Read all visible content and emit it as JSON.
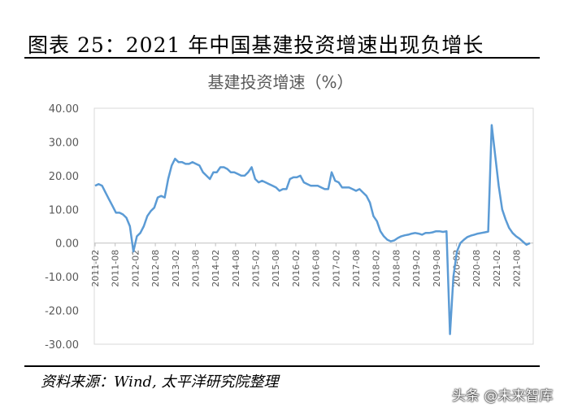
{
  "figure_title": "图表 25：2021 年中国基建投资增速出现负增长",
  "source": "资料来源：Wind, 太平洋研究院整理",
  "watermark": "头条 @未来智库",
  "colors": {
    "line": "#5b9bd5",
    "axis": "#bfbfbf",
    "text": "#595959"
  },
  "chart_data": {
    "type": "line",
    "title": "基建投资增速（%）",
    "y_tick_labels": [
      "40.00",
      "30.00",
      "20.00",
      "10.00",
      "0.00",
      "-10.00",
      "-20.00",
      "-30.00"
    ],
    "y_ticks": [
      40,
      30,
      20,
      10,
      0,
      -10,
      -20,
      -30
    ],
    "ylim": [
      -30,
      40
    ],
    "x_tick_labels": [
      "2011-02",
      "2011-08",
      "2012-02",
      "2012-08",
      "2013-02",
      "2013-08",
      "2014-02",
      "2014-08",
      "2015-02",
      "2015-08",
      "2016-02",
      "2016-08",
      "2017-02",
      "2017-08",
      "2018-02",
      "2018-08",
      "2019-02",
      "2019-08",
      "2020-02",
      "2020-08",
      "2021-02",
      "2021-08"
    ],
    "x_start": "2011-02",
    "x_end": "2021-12",
    "grid": false,
    "legend": "none",
    "series": [
      {
        "values": [
          17,
          17.5,
          17,
          15,
          13,
          11,
          9,
          9,
          8.5,
          7.5,
          5,
          -2.5,
          2,
          3,
          5,
          8,
          9.5,
          10.5,
          13.5,
          14,
          13.5,
          19,
          23,
          25,
          24,
          24,
          23.5,
          23.5,
          24,
          23.5,
          23,
          21,
          20,
          19,
          21,
          21,
          22.5,
          22.5,
          22,
          21,
          21,
          20.5,
          20,
          20,
          21,
          22.5,
          19,
          18,
          18.5,
          18,
          17.5,
          17,
          16.5,
          15.5,
          16,
          16,
          19,
          19.5,
          19.5,
          20,
          18,
          17.5,
          17,
          17,
          17,
          16.5,
          16,
          16,
          21,
          18.5,
          18,
          16.5,
          16.5,
          16.5,
          16,
          15.5,
          16,
          15,
          14,
          12,
          8,
          6.5,
          3.5,
          2,
          1,
          0.5,
          0.8,
          1.5,
          2,
          2.3,
          2.5,
          2.8,
          3,
          2.8,
          2.5,
          3,
          3,
          3.2,
          3.5,
          3.5,
          3.3,
          3.5,
          -27,
          -10,
          -2.5,
          0,
          1,
          1.8,
          2.2,
          2.5,
          2.8,
          3,
          3.2,
          3.4,
          35,
          26,
          17,
          10,
          7,
          4.5,
          3,
          2,
          1.3,
          0.4,
          -0.5,
          0
        ]
      }
    ]
  }
}
